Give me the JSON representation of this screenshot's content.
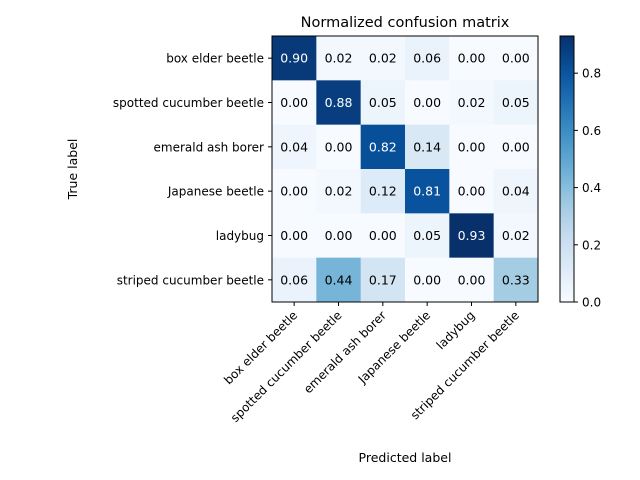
{
  "chart_data": {
    "type": "heatmap",
    "title": "Normalized confusion matrix",
    "xlabel": "Predicted label",
    "ylabel": "True label",
    "row_labels": [
      "box elder beetle",
      "spotted cucumber beetle",
      "emerald ash borer",
      "Japanese beetle",
      "ladybug",
      "striped cucumber beetle"
    ],
    "col_labels": [
      "box elder beetle",
      "spotted cucumber beetle",
      "emerald ash borer",
      "Japanese beetle",
      "ladybug",
      "striped cucumber beetle"
    ],
    "values": [
      [
        0.9,
        0.02,
        0.02,
        0.06,
        0.0,
        0.0
      ],
      [
        0.0,
        0.88,
        0.05,
        0.0,
        0.02,
        0.05
      ],
      [
        0.04,
        0.0,
        0.82,
        0.14,
        0.0,
        0.0
      ],
      [
        0.0,
        0.02,
        0.12,
        0.81,
        0.0,
        0.04
      ],
      [
        0.0,
        0.0,
        0.0,
        0.05,
        0.93,
        0.02
      ],
      [
        0.06,
        0.44,
        0.17,
        0.0,
        0.0,
        0.33
      ]
    ],
    "colormap": "Blues",
    "vmin": 0.0,
    "vmax": 0.93,
    "colorbar_ticks": [
      "0.0",
      "0.2",
      "0.4",
      "0.6",
      "0.8"
    ]
  }
}
